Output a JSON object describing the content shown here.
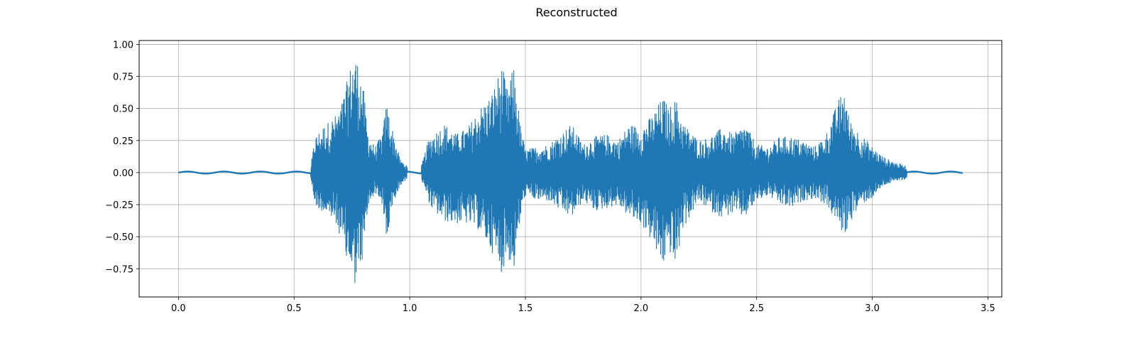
{
  "chart_data": {
    "type": "line",
    "title": "Reconstructed",
    "xlabel": "",
    "ylabel": "",
    "xlim": [
      -0.17,
      3.56
    ],
    "ylim": [
      -0.97,
      1.03
    ],
    "xticks": [
      0.0,
      0.5,
      1.0,
      1.5,
      2.0,
      2.5,
      3.0,
      3.5
    ],
    "xtick_labels": [
      "0.0",
      "0.5",
      "1.0",
      "1.5",
      "2.0",
      "2.5",
      "3.0",
      "3.5"
    ],
    "yticks": [
      1.0,
      0.75,
      0.5,
      0.25,
      0.0,
      -0.25,
      -0.5,
      -0.75
    ],
    "ytick_labels": [
      "1.00",
      "0.75",
      "0.50",
      "0.25",
      "0.00",
      "−0.25",
      "−0.50",
      "−0.75"
    ],
    "grid": true,
    "line_color": "#1f77b4",
    "series": [
      {
        "name": "",
        "duration": 3.39,
        "envelope": {
          "x": [
            0.0,
            0.02,
            0.05,
            0.1,
            0.2,
            0.3,
            0.4,
            0.5,
            0.57,
            0.59,
            0.6,
            0.62,
            0.65,
            0.68,
            0.7,
            0.72,
            0.74,
            0.76,
            0.78,
            0.8,
            0.82,
            0.85,
            0.88,
            0.9,
            0.93,
            0.96,
            1.0,
            1.05,
            1.08,
            1.1,
            1.15,
            1.2,
            1.25,
            1.3,
            1.35,
            1.4,
            1.42,
            1.45,
            1.48,
            1.5,
            1.55,
            1.6,
            1.65,
            1.7,
            1.75,
            1.8,
            1.85,
            1.9,
            1.95,
            2.0,
            2.05,
            2.08,
            2.1,
            2.12,
            2.15,
            2.18,
            2.2,
            2.25,
            2.3,
            2.35,
            2.4,
            2.45,
            2.5,
            2.55,
            2.6,
            2.65,
            2.7,
            2.75,
            2.8,
            2.85,
            2.88,
            2.9,
            2.95,
            3.0,
            3.05,
            3.1,
            3.15,
            3.2,
            3.25,
            3.3,
            3.39
          ],
          "pos": [
            0.01,
            0.02,
            0.01,
            0.01,
            0.02,
            0.01,
            0.01,
            0.01,
            0.02,
            0.28,
            0.3,
            0.35,
            0.4,
            0.45,
            0.5,
            0.65,
            0.8,
            0.94,
            0.85,
            0.65,
            0.3,
            0.2,
            0.3,
            0.55,
            0.3,
            0.1,
            0.03,
            0.05,
            0.25,
            0.3,
            0.38,
            0.3,
            0.35,
            0.5,
            0.6,
            0.84,
            0.65,
            0.83,
            0.35,
            0.18,
            0.2,
            0.22,
            0.3,
            0.38,
            0.22,
            0.28,
            0.3,
            0.25,
            0.38,
            0.35,
            0.45,
            0.55,
            0.58,
            0.5,
            0.58,
            0.4,
            0.35,
            0.25,
            0.28,
            0.35,
            0.3,
            0.38,
            0.22,
            0.2,
            0.28,
            0.28,
            0.25,
            0.2,
            0.3,
            0.55,
            0.67,
            0.42,
            0.3,
            0.2,
            0.12,
            0.08,
            0.05,
            0.03,
            0.02,
            0.02,
            0.01
          ],
          "neg": [
            -0.01,
            -0.01,
            -0.01,
            -0.01,
            -0.01,
            -0.01,
            -0.01,
            -0.01,
            -0.02,
            -0.25,
            -0.28,
            -0.3,
            -0.35,
            -0.4,
            -0.5,
            -0.7,
            -0.75,
            -0.88,
            -0.82,
            -0.65,
            -0.28,
            -0.15,
            -0.25,
            -0.55,
            -0.25,
            -0.1,
            -0.03,
            -0.05,
            -0.22,
            -0.3,
            -0.38,
            -0.4,
            -0.4,
            -0.45,
            -0.6,
            -0.79,
            -0.65,
            -0.77,
            -0.35,
            -0.18,
            -0.22,
            -0.22,
            -0.3,
            -0.35,
            -0.22,
            -0.3,
            -0.28,
            -0.25,
            -0.35,
            -0.4,
            -0.55,
            -0.7,
            -0.72,
            -0.6,
            -0.75,
            -0.45,
            -0.38,
            -0.22,
            -0.3,
            -0.35,
            -0.32,
            -0.35,
            -0.22,
            -0.18,
            -0.25,
            -0.28,
            -0.22,
            -0.2,
            -0.25,
            -0.4,
            -0.5,
            -0.4,
            -0.25,
            -0.2,
            -0.1,
            -0.07,
            -0.05,
            -0.03,
            -0.02,
            -0.01,
            -0.01
          ]
        }
      }
    ]
  }
}
